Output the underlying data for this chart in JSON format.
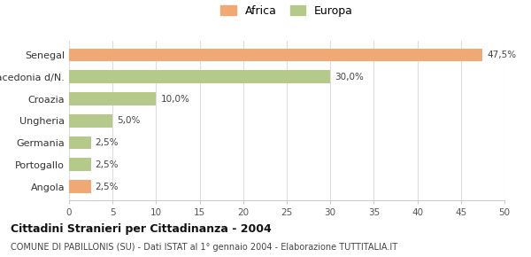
{
  "categories": [
    "Angola",
    "Portogallo",
    "Germania",
    "Ungheria",
    "Croazia",
    "Macedonia d/N.",
    "Senegal"
  ],
  "values": [
    2.5,
    2.5,
    2.5,
    5.0,
    10.0,
    30.0,
    47.5
  ],
  "colors": [
    "#f0a875",
    "#b5c98a",
    "#b5c98a",
    "#b5c98a",
    "#b5c98a",
    "#b5c98a",
    "#f0a875"
  ],
  "legend": [
    {
      "label": "Africa",
      "color": "#f0a875"
    },
    {
      "label": "Europa",
      "color": "#b5c98a"
    }
  ],
  "labels": [
    "2,5%",
    "2,5%",
    "2,5%",
    "5,0%",
    "10,0%",
    "30,0%",
    "47,5%"
  ],
  "xlim": [
    0,
    50
  ],
  "xticks": [
    0,
    5,
    10,
    15,
    20,
    25,
    30,
    35,
    40,
    45,
    50
  ],
  "title_bold": "Cittadini Stranieri per Cittadinanza - 2004",
  "subtitle": "COMUNE DI PABILLONIS (SU) - Dati ISTAT al 1° gennaio 2004 - Elaborazione TUTTITALIA.IT",
  "bg_color": "#ffffff",
  "grid_color": "#dddddd",
  "bar_height": 0.6
}
